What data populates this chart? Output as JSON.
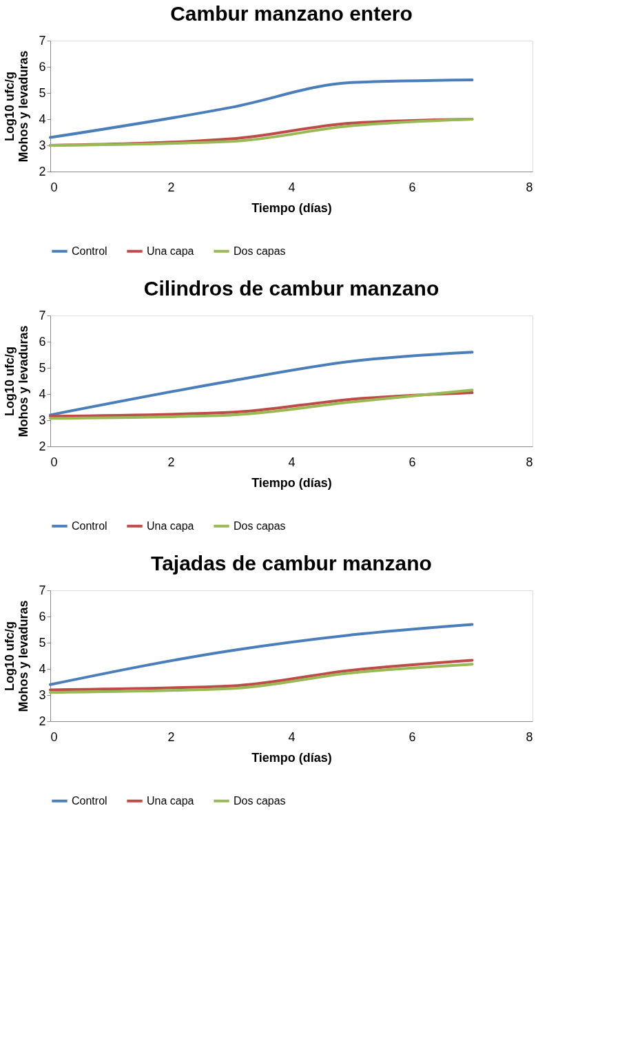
{
  "chart_data": [
    {
      "type": "line",
      "title": "Cambur manzano entero",
      "xlabel": "Tiempo (días)",
      "ylabel": "Log10 ufc/g\nMohos y levaduras",
      "x": [
        0,
        3,
        5,
        7
      ],
      "xlim": [
        0,
        8
      ],
      "xticks": [
        0,
        2,
        4,
        6,
        8
      ],
      "ylim": [
        2,
        7
      ],
      "yticks": [
        2,
        3,
        4,
        5,
        6,
        7
      ],
      "grid": false,
      "legend": "bottom",
      "marker": "none",
      "line_style": "solid",
      "series": [
        {
          "name": "Control",
          "color": "#4a7ebb",
          "values": [
            3.3,
            4.45,
            5.4,
            5.5
          ]
        },
        {
          "name": "Una capa",
          "color": "#be4b48",
          "values": [
            3.0,
            3.25,
            3.85,
            4.0
          ]
        },
        {
          "name": "Dos capas",
          "color": "#98b954",
          "values": [
            3.0,
            3.15,
            3.75,
            4.0
          ]
        }
      ]
    },
    {
      "type": "line",
      "title": "Cilindros de cambur manzano",
      "xlabel": "Tiempo (días)",
      "ylabel": "Log10 ufc/g\nMohos y levaduras",
      "x": [
        0,
        3,
        5,
        7
      ],
      "xlim": [
        0,
        8
      ],
      "xticks": [
        0,
        2,
        4,
        6,
        8
      ],
      "ylim": [
        2,
        7
      ],
      "yticks": [
        2,
        3,
        4,
        5,
        6,
        7
      ],
      "grid": false,
      "legend": "bottom",
      "marker": "none",
      "line_style": "solid",
      "series": [
        {
          "name": "Control",
          "color": "#4a7ebb",
          "values": [
            3.2,
            4.5,
            5.25,
            5.6
          ]
        },
        {
          "name": "Una capa",
          "color": "#be4b48",
          "values": [
            3.15,
            3.3,
            3.8,
            4.05
          ]
        },
        {
          "name": "Dos capas",
          "color": "#98b954",
          "values": [
            3.07,
            3.2,
            3.7,
            4.15
          ]
        }
      ]
    },
    {
      "type": "line",
      "title": "Tajadas de cambur manzano",
      "xlabel": "Tiempo (días)",
      "ylabel": "Log10 ufc/g\nMohos y levaduras",
      "x": [
        0,
        3,
        5,
        7
      ],
      "xlim": [
        0,
        8
      ],
      "xticks": [
        0,
        2,
        4,
        6,
        8
      ],
      "ylim": [
        2,
        7
      ],
      "yticks": [
        2,
        3,
        4,
        5,
        6,
        7
      ],
      "grid": false,
      "legend": "bottom",
      "marker": "none",
      "line_style": "solid",
      "series": [
        {
          "name": "Control",
          "color": "#4a7ebb",
          "values": [
            3.4,
            4.7,
            5.3,
            5.7
          ]
        },
        {
          "name": "Una capa",
          "color": "#be4b48",
          "values": [
            3.2,
            3.35,
            3.95,
            4.33
          ]
        },
        {
          "name": "Dos capas",
          "color": "#98b954",
          "values": [
            3.1,
            3.25,
            3.85,
            4.18
          ]
        }
      ]
    }
  ]
}
